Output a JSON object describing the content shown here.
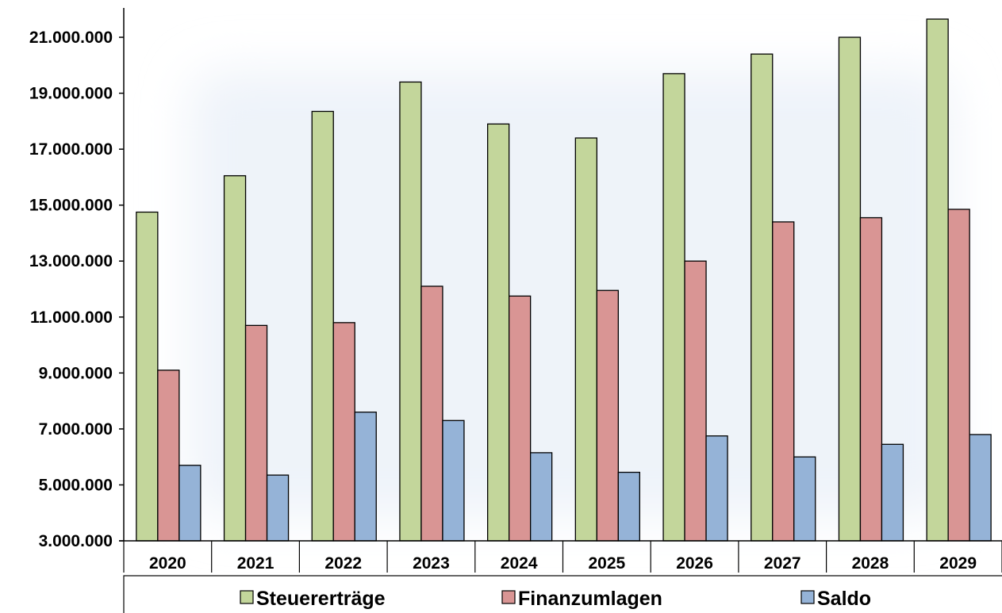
{
  "chart_data": {
    "type": "bar",
    "title": "",
    "xlabel": "",
    "ylabel": "",
    "categories": [
      "2020",
      "2021",
      "2022",
      "2023",
      "2024",
      "2025",
      "2026",
      "2027",
      "2028",
      "2029"
    ],
    "series": [
      {
        "name": "Steuererträge",
        "color": "#c3d69b",
        "values": [
          14750000,
          16050000,
          18350000,
          19400000,
          17900000,
          17400000,
          19700000,
          20400000,
          21000000,
          21650000
        ]
      },
      {
        "name": "Finanzumlagen",
        "color": "#d99594",
        "values": [
          9100000,
          10700000,
          10800000,
          12100000,
          11750000,
          11950000,
          13000000,
          14400000,
          14550000,
          14850000
        ]
      },
      {
        "name": "Saldo",
        "color": "#95b3d7",
        "values": [
          5700000,
          5350000,
          7600000,
          7300000,
          6150000,
          5450000,
          6750000,
          6000000,
          6450000,
          6800000
        ]
      }
    ],
    "ylim": [
      3000000,
      22000000
    ],
    "yticks": [
      3000000,
      5000000,
      7000000,
      9000000,
      11000000,
      13000000,
      15000000,
      17000000,
      19000000,
      21000000
    ],
    "ytick_labels": [
      "3.000.000",
      "5.000.000",
      "7.000.000",
      "9.000.000",
      "11.000.000",
      "13.000.000",
      "15.000.000",
      "17.000.000",
      "19.000.000",
      "21.000.000"
    ],
    "grid": false,
    "legend_position": "bottom",
    "colors": {
      "plot_background_glow": "#eef3f9",
      "axis": "#000000"
    }
  }
}
